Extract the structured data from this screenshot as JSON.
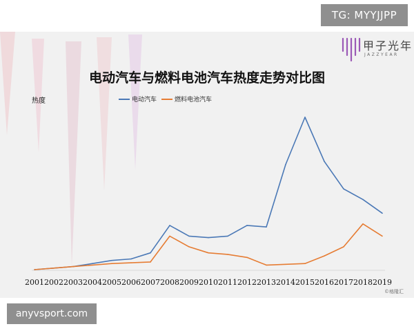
{
  "watermark_top": "TG: MYYJJPP",
  "watermark_bottom": "anyvsport.com",
  "logo": {
    "name": "甲子光年",
    "sub": "JAZZYEAR"
  },
  "source_note": "©格隆汇",
  "colors": {
    "ev_line": "#4a78b6",
    "fcv_line": "#e67c33",
    "panel": "#f1f1f1",
    "grid": "#d9d9d9"
  },
  "chart_data": {
    "type": "line",
    "title": "电动汽车与燃料电池汽车热度走势对比图",
    "ylabel": "热度",
    "xlabel": "",
    "categories": [
      "2001",
      "2002",
      "2003",
      "2004",
      "2005",
      "2006",
      "2007",
      "2008",
      "2009",
      "2010",
      "2011",
      "2012",
      "2013",
      "2014",
      "2015",
      "2016",
      "2017",
      "2018",
      "2019"
    ],
    "ylim": [
      0,
      100
    ],
    "grid": false,
    "legend_position": "top",
    "series": [
      {
        "name": "电动汽车",
        "color": "#4a78b6",
        "values": [
          0,
          1,
          2,
          4,
          6,
          7,
          11,
          29,
          22,
          21,
          22,
          29,
          28,
          69,
          100,
          71,
          53,
          46,
          37
        ]
      },
      {
        "name": "燃料电池汽车",
        "color": "#e67c33",
        "values": [
          0,
          1,
          2,
          3,
          4,
          4.5,
          5,
          22,
          15,
          11,
          10,
          8,
          3,
          3.5,
          4,
          9,
          15,
          30,
          22
        ]
      }
    ]
  }
}
